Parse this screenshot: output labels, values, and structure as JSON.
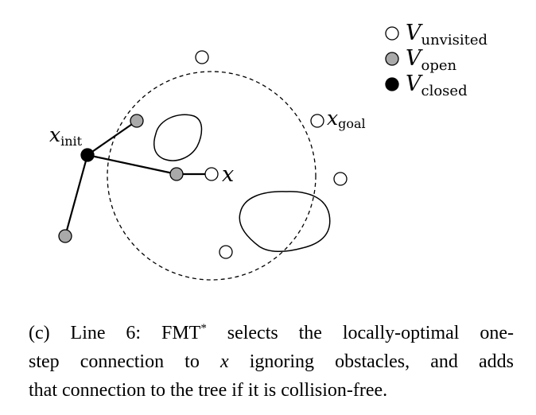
{
  "legend": {
    "unvisited": {
      "symbol": "V",
      "subscript": "unvisited"
    },
    "open": {
      "symbol": "V",
      "subscript": "open"
    },
    "closed": {
      "symbol": "V",
      "subscript": "closed"
    }
  },
  "labels": {
    "x_init": {
      "symbol": "x",
      "subscript": "init"
    },
    "x_goal": {
      "symbol": "x",
      "subscript": "goal"
    },
    "x": "x"
  },
  "colors": {
    "unvisited_fill": "#ffffff",
    "open_fill": "#a9a9a9",
    "closed_fill": "#000000",
    "stroke": "#000000"
  },
  "caption": {
    "line1_prefix": "(c) Line 6:  FMT",
    "line1_sup": "*",
    "line1_rest": " selects the locally-optimal one-",
    "line2_prefix": "step connection to ",
    "line2_var": "x",
    "line2_rest": " ignoring obstacles, and adds",
    "line3": "that connection to the tree if it is collision-free."
  }
}
